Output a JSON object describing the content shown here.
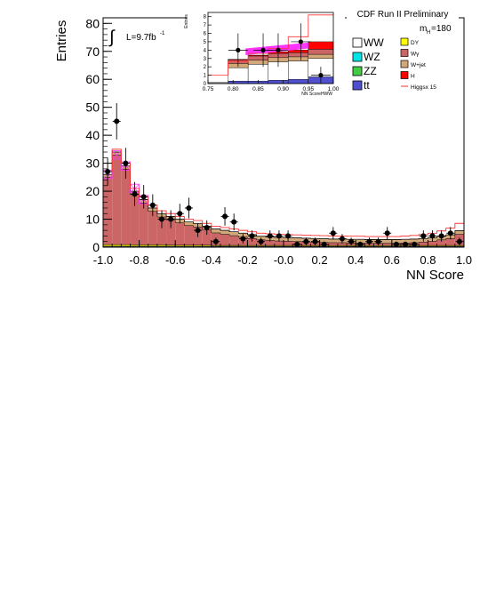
{
  "chart_data": [
    {
      "type": "bar",
      "id": "main",
      "title": "CDF Run II Preliminary",
      "xlabel": "NN Score",
      "ylabel": "Entries",
      "xlim": [
        -1.0,
        1.0
      ],
      "ylim": [
        0,
        82
      ],
      "bins": 40,
      "xticks": [
        -1.0,
        -0.8,
        -0.6,
        -0.4,
        -0.2,
        0.0,
        0.2,
        0.4,
        0.6,
        0.8,
        1.0
      ],
      "xtick_labels": [
        "-1.0",
        "-0.8",
        "-0.6",
        "-0.4",
        "-0.2",
        "-0.0",
        "0.2",
        "0.4",
        "0.6",
        "0.8",
        "1.0"
      ],
      "yticks": [
        0,
        10,
        20,
        30,
        40,
        50,
        60,
        70,
        80
      ],
      "ytick_labels": [
        "0",
        "10",
        "20",
        "30",
        "40",
        "50",
        "60",
        "70",
        "80"
      ],
      "luminosity_label": "L=9.7fb",
      "luminosity_exp": "-1",
      "integral_glyph": "∫",
      "mass_label": "m",
      "mass_sub": "H",
      "mass_value": "=180",
      "stack_total": [
        26,
        34,
        29,
        20,
        17,
        14,
        12,
        11,
        10,
        9,
        8.5,
        7.5,
        6.5,
        6,
        5.5,
        5,
        4.5,
        4,
        3.8,
        3.6,
        3.5,
        3.4,
        3.3,
        3.2,
        3.1,
        3,
        3,
        2.9,
        2.9,
        2.8,
        2.8,
        2.8,
        2.8,
        2.9,
        3,
        3.2,
        3.5,
        4,
        4.5,
        6
      ],
      "series": [
        {
          "name": "tt",
          "color": "#4f4fd0",
          "values": [
            0.3,
            0.3,
            0.3,
            0.3,
            0.3,
            0.3,
            0.3,
            0.3,
            0.3,
            0.3,
            0.3,
            0.3,
            0.3,
            0.3,
            0.3,
            0.3,
            0.3,
            0.3,
            0.3,
            0.3,
            0.3,
            0.3,
            0.3,
            0.3,
            0.3,
            0.3,
            0.3,
            0.3,
            0.3,
            0.3,
            0.3,
            0.3,
            0.3,
            0.3,
            0.3,
            0.3,
            0.3,
            0.3,
            0.3,
            0.3
          ]
        },
        {
          "name": "DY",
          "color": "#e8e800",
          "values": [
            0.6,
            0.6,
            0.6,
            0.5,
            0.5,
            0.5,
            0.5,
            0.4,
            0.4,
            0.4,
            0.4,
            0.4,
            0.3,
            0.3,
            0.3,
            0.3,
            0.3,
            0.3,
            0.3,
            0.3,
            0.3,
            0.3,
            0.3,
            0.3,
            0.3,
            0.3,
            0.3,
            0.3,
            0.3,
            0.3,
            0.3,
            0.3,
            0.3,
            0.3,
            0.3,
            0.3,
            0.3,
            0.3,
            0.3,
            0.3
          ]
        },
        {
          "name": "Wγ",
          "color": "#cc6666",
          "values": [
            24,
            32,
            27,
            18,
            15,
            12,
            10,
            9,
            8,
            7,
            6.5,
            5.5,
            4.5,
            4,
            3.5,
            3,
            2.5,
            2,
            1.8,
            1.6,
            1.5,
            1.4,
            1.3,
            1.2,
            1.1,
            1,
            1,
            0.9,
            0.9,
            0.8,
            0.8,
            0.8,
            0.8,
            0.9,
            1,
            1.2,
            1.5,
            2,
            2.5,
            4
          ]
        },
        {
          "name": "W+jet",
          "color": "#d2a878",
          "values": [
            1.1,
            1.1,
            1.1,
            1.2,
            1.2,
            1.2,
            1.2,
            1.3,
            1.3,
            1.3,
            1.3,
            1.3,
            1.4,
            1.4,
            1.4,
            1.4,
            1.4,
            1.3,
            1.3,
            1.3,
            1.3,
            1.3,
            1.3,
            1.3,
            1.3,
            1.3,
            1.3,
            1.3,
            1.3,
            1.3,
            1.3,
            1.3,
            1.3,
            1.3,
            1.3,
            1.3,
            1.3,
            1.3,
            1.3,
            1.3
          ]
        }
      ],
      "higgs_overlay": {
        "name": "Higgsx 15",
        "color": "#ff3333",
        "values": [
          27,
          35,
          30,
          21,
          18,
          15,
          13,
          12,
          11,
          10,
          9.5,
          8.5,
          7.5,
          7,
          6.5,
          6,
          5.5,
          5,
          4.8,
          4.6,
          4.5,
          4.4,
          4.3,
          4.2,
          4.1,
          4,
          4,
          3.9,
          3.9,
          3.8,
          3.8,
          3.8,
          3.8,
          4,
          4.2,
          4.5,
          5,
          5.8,
          6.8,
          8.5
        ]
      },
      "signal_band": {
        "color": "#ff33ff",
        "center": [
          26,
          33,
          29,
          21,
          17
        ],
        "x_bins": [
          0,
          1,
          2,
          3,
          4
        ]
      },
      "data_points": {
        "x": [
          -0.975,
          -0.925,
          -0.875,
          -0.825,
          -0.775,
          -0.725,
          -0.675,
          -0.625,
          -0.575,
          -0.525,
          -0.475,
          -0.425,
          -0.375,
          -0.325,
          -0.275,
          -0.225,
          -0.175,
          -0.125,
          -0.075,
          -0.025,
          0.025,
          0.075,
          0.125,
          0.175,
          0.225,
          0.275,
          0.325,
          0.375,
          0.425,
          0.475,
          0.525,
          0.575,
          0.625,
          0.675,
          0.725,
          0.775,
          0.825,
          0.875,
          0.925,
          0.975
        ],
        "y": [
          27,
          45,
          30,
          19,
          18,
          15,
          10,
          10,
          12,
          14,
          6,
          7,
          2,
          11,
          9,
          3,
          4,
          2,
          4,
          4,
          4,
          1,
          2,
          2,
          1,
          5,
          3,
          2,
          1,
          2,
          2,
          5,
          1,
          1,
          1,
          4,
          4,
          4,
          5,
          2
        ],
        "err": [
          5,
          6.5,
          5.5,
          4.3,
          4.2,
          3.9,
          3.2,
          3.2,
          3.5,
          3.7,
          2.4,
          2.6,
          1.4,
          3.3,
          3,
          1.7,
          2,
          1.4,
          2,
          2,
          2,
          1,
          1.4,
          1.4,
          1,
          2.2,
          1.7,
          1.4,
          1,
          1.4,
          1.4,
          2.2,
          1,
          1,
          1,
          2,
          2,
          2,
          2.2,
          1.4
        ]
      }
    },
    {
      "type": "bar",
      "id": "inset",
      "xlabel": "NN ScoreHWW",
      "ylabel": "Entries",
      "xlim": [
        0.75,
        1.0
      ],
      "ylim": [
        0,
        8.5
      ],
      "xticks": [
        0.75,
        0.8,
        0.85,
        0.9,
        0.95,
        1.0
      ],
      "xtick_labels": [
        "0.75",
        "0.80",
        "0.85",
        "0.90",
        "0.95",
        "1.00"
      ],
      "yticks": [
        0,
        1,
        2,
        3,
        4,
        5,
        6,
        7,
        8
      ],
      "ytick_labels": [
        "0",
        "1",
        "2",
        "3",
        "4",
        "5",
        "6",
        "7",
        "8"
      ],
      "bin_edges": [
        0.75,
        0.79,
        0.83,
        0.87,
        0.91,
        0.95,
        1.0
      ],
      "layers": [
        {
          "name": "tt",
          "color": "#4f4fd0",
          "values": [
            0.05,
            0.3,
            0.3,
            0.4,
            0.5,
            0.8
          ]
        },
        {
          "name": "WW",
          "color": "#ffffff",
          "values": [
            0.1,
            1.6,
            2.0,
            2.2,
            2.2,
            2.2
          ]
        },
        {
          "name": "W+jet",
          "color": "#d2a878",
          "values": [
            0.0,
            0.5,
            0.5,
            0.5,
            0.5,
            0.5
          ]
        },
        {
          "name": "Wγ",
          "color": "#cc6666",
          "values": [
            0.0,
            0.4,
            0.5,
            0.5,
            0.5,
            0.6
          ]
        },
        {
          "name": "H",
          "color": "#ff0000",
          "values": [
            0.0,
            0.1,
            0.1,
            0.2,
            0.3,
            0.9
          ]
        }
      ],
      "higgs_overlay": [
        1.0,
        2.6,
        3.6,
        4.2,
        5.6,
        8.2
      ],
      "signal_band": {
        "x_start": 0.825,
        "x_end": 0.95,
        "y_start": 3.4,
        "y_end": 4.5
      },
      "data_points": {
        "x": [
          0.81,
          0.86,
          0.89,
          0.935,
          0.975
        ],
        "y": [
          4.0,
          4.0,
          4.0,
          5.0,
          1.0
        ],
        "err": [
          2.0,
          2.0,
          2.0,
          2.2,
          1.0
        ]
      }
    }
  ],
  "legend": {
    "left": [
      {
        "label": "WW",
        "color": "#ffffff"
      },
      {
        "label": "WZ",
        "color": "#00e5e5"
      },
      {
        "label": "ZZ",
        "color": "#44cc44"
      },
      {
        "label": "tt",
        "color": "#4f4fd0"
      }
    ],
    "right": [
      {
        "label": "DY",
        "color": "#ffff00"
      },
      {
        "label": "Wγ",
        "color": "#cc6666"
      },
      {
        "label": "W+jet",
        "color": "#d2a878"
      },
      {
        "label": "H",
        "color": "#ff0000"
      },
      {
        "label": "Higgsx 15",
        "color": "#ff3333",
        "line": true
      }
    ]
  }
}
